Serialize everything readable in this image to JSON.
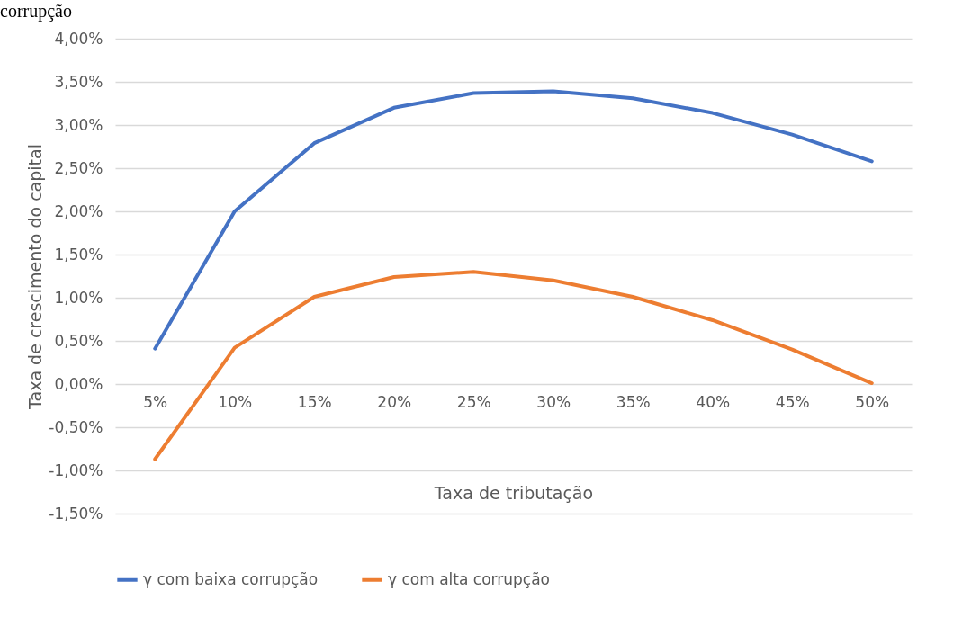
{
  "chart_data": {
    "type": "line",
    "annotations": [
      "corrupção"
    ],
    "xlabel": "Taxa de tributação",
    "ylabel": "Taxa de crescimento do capital",
    "categories": [
      "5%",
      "10%",
      "15%",
      "20%",
      "25%",
      "30%",
      "35%",
      "40%",
      "45%",
      "50%"
    ],
    "series": [
      {
        "name": "γ com baixa corrupção",
        "color": "#4472c4",
        "values": [
          0.41,
          2.0,
          2.79,
          3.2,
          3.37,
          3.39,
          3.31,
          3.14,
          2.89,
          2.58
        ]
      },
      {
        "name": "γ com alta corrupção",
        "color": "#ed7d31",
        "values": [
          -0.87,
          0.42,
          1.01,
          1.24,
          1.3,
          1.2,
          1.01,
          0.74,
          0.4,
          0.01
        ]
      }
    ],
    "ylim": [
      -1.5,
      4
    ],
    "yticks": [
      {
        "value": -1.5,
        "label": "-1,50%"
      },
      {
        "value": -1,
        "label": "-1,00%"
      },
      {
        "value": -0.5,
        "label": "-0,50%"
      },
      {
        "value": 0,
        "label": "0,00%"
      },
      {
        "value": 0.5,
        "label": "0,50%"
      },
      {
        "value": 1,
        "label": "1,00%"
      },
      {
        "value": 1.5,
        "label": "1,50%"
      },
      {
        "value": 2,
        "label": "2,00%"
      },
      {
        "value": 2.5,
        "label": "2,50%"
      },
      {
        "value": 3,
        "label": "3,00%"
      },
      {
        "value": 3.5,
        "label": "3,50%"
      },
      {
        "value": 4,
        "label": "4,00%"
      }
    ],
    "grid": "y",
    "legend": "bottom",
    "marker": "none",
    "line_style": "solid"
  }
}
